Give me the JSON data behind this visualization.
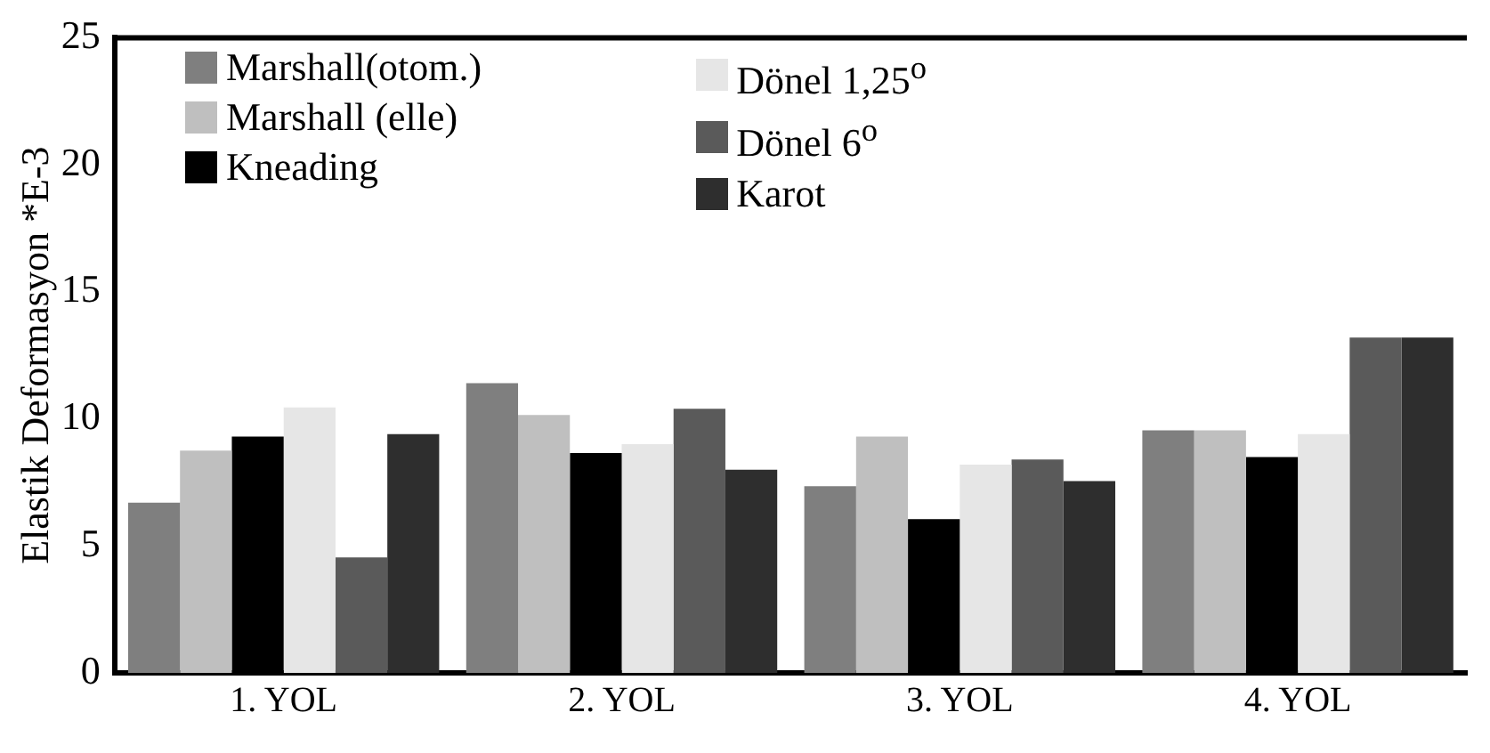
{
  "chart_data": {
    "type": "bar",
    "ylabel": "Elastik Deformasyon *E-3",
    "categories": [
      "1. YOL",
      "2. YOL",
      "3. YOL",
      "4. YOL"
    ],
    "series": [
      {
        "name": "Marshall(otom.)",
        "color": "#7f7f7f",
        "values": [
          6.7,
          11.4,
          7.35,
          9.55
        ]
      },
      {
        "name": "Marshall (elle)",
        "color": "#bfbfbf",
        "values": [
          8.75,
          10.15,
          9.3,
          9.55
        ]
      },
      {
        "name": "Kneading",
        "color": "#000000",
        "values": [
          9.3,
          8.65,
          6.05,
          8.5
        ]
      },
      {
        "name": "Dönel 1,25$^{o}$",
        "color": "#e6e6e6",
        "values": [
          10.45,
          9.0,
          8.2,
          9.4
        ]
      },
      {
        "name": "Dönel 6$^{o}$",
        "color": "#5a5a5a",
        "values": [
          4.55,
          10.4,
          8.4,
          13.2
        ]
      },
      {
        "name": "Karot",
        "color": "#2e2e2e",
        "values": [
          9.4,
          8.0,
          7.55,
          13.2
        ]
      }
    ],
    "ylim": [
      0,
      25
    ],
    "yticks": [
      0,
      5,
      10,
      15,
      20,
      25
    ],
    "grid": false,
    "legend": "top left"
  }
}
